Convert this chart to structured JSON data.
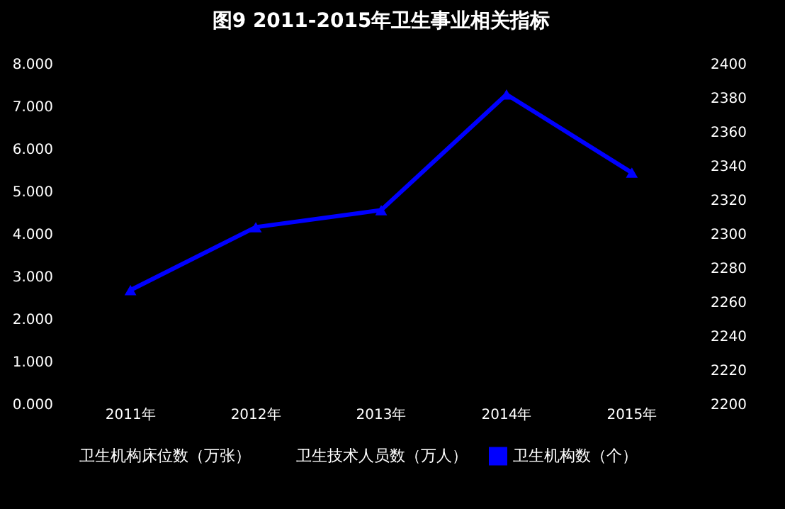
{
  "chart_data": {
    "type": "bar",
    "title": "图9  2011-2015年卫生事业相关指标",
    "categories": [
      "2011年",
      "2012年",
      "2013年",
      "2014年",
      "2015年"
    ],
    "series": [
      {
        "name": "卫生机构床位数（万张）",
        "values": [
          null,
          null,
          null,
          null,
          null
        ]
      },
      {
        "name": "卫生技术人员数（万人）",
        "values": [
          null,
          null,
          null,
          null,
          null
        ]
      },
      {
        "name": "卫生机构数（个）",
        "type": "line",
        "axis": "y2",
        "color": "#0000ff",
        "values": [
          2267,
          2304,
          2314,
          2382,
          2336
        ]
      }
    ],
    "ylim": [
      0,
      8
    ],
    "yticks": [
      {
        "value": 0,
        "label": "0.000"
      },
      {
        "value": 1,
        "label": "1.000"
      },
      {
        "value": 2,
        "label": "2.000"
      },
      {
        "value": 3,
        "label": "3.000"
      },
      {
        "value": 4,
        "label": "4.000"
      },
      {
        "value": 5,
        "label": "5.000"
      },
      {
        "value": 6,
        "label": "6.000"
      },
      {
        "value": 7,
        "label": "7.000"
      },
      {
        "value": 8,
        "label": "8.000"
      }
    ],
    "y2lim": [
      2200,
      2400
    ],
    "y2ticks": [
      2200,
      2220,
      2240,
      2260,
      2280,
      2300,
      2320,
      2340,
      2360,
      2380,
      2400
    ],
    "marker": "triangle",
    "legend": "bottom"
  }
}
